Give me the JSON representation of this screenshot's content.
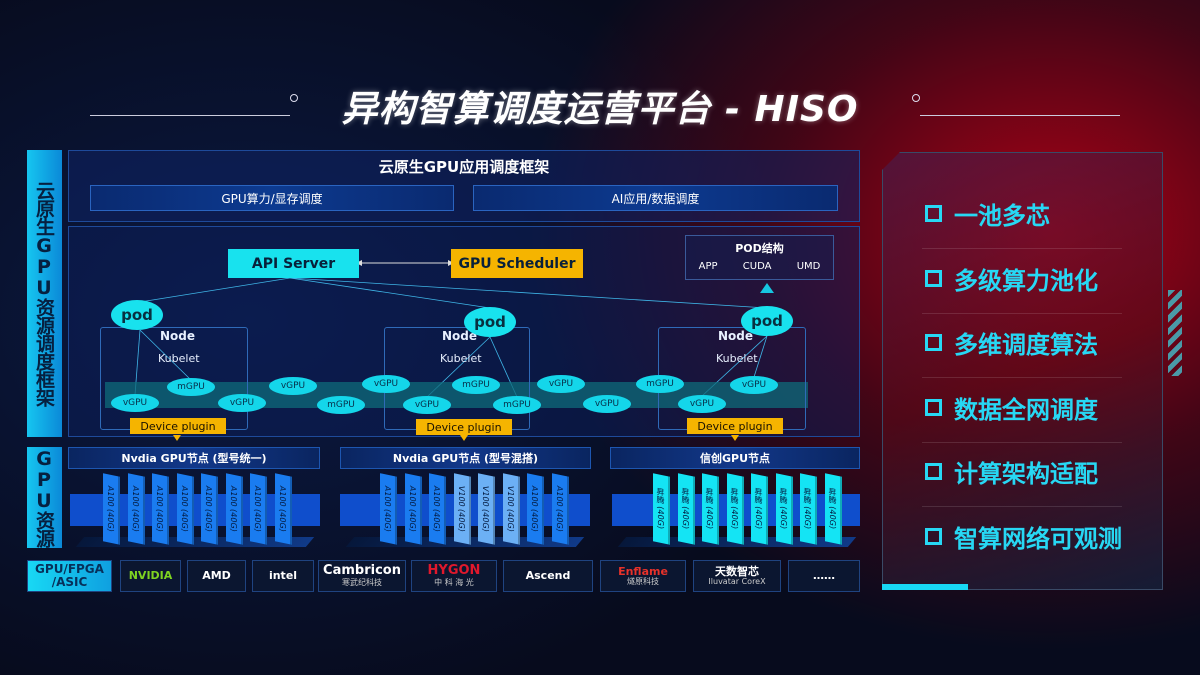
{
  "title": "异构智算调度运营平台 - HISO",
  "left_labels": {
    "framework": "云原生GPU资源调度框架",
    "resources": "GPU资源"
  },
  "framework": {
    "header": "云原生GPU应用调度框架",
    "bars": [
      "GPU算力/显存调度",
      "AI应用/数据调度"
    ],
    "api_server": "API Server",
    "gpu_scheduler": "GPU Scheduler",
    "pod_structure": {
      "title": "POD结构",
      "items": [
        "APP",
        "CUDA",
        "UMD"
      ]
    },
    "pod_label": "pod",
    "node_label": "Node",
    "kubelet_label": "Kubelet",
    "device_plugin": "Device plugin",
    "gpu_units": [
      "vGPU",
      "mGPU",
      "vGPU",
      "vGPU",
      "mGPU",
      "vGPU",
      "vGPU",
      "mGPU",
      "mGPU",
      "vGPU",
      "vGPU",
      "mGPU",
      "vGPU",
      "vGPU"
    ]
  },
  "gpu_nodes": [
    {
      "title": "Nvdia GPU节点 (型号统一)",
      "cards": [
        "A100 (40G)",
        "A100 (40G)",
        "A100 (40G)",
        "A100 (40G)",
        "A100 (40G)",
        "A100 (40G)",
        "A100 (40G)",
        "A100 (40G)"
      ]
    },
    {
      "title": "Nvdia GPU节点 (型号混搭)",
      "cards": [
        "A100 (40G)",
        "A100 (40G)",
        "A100 (40G)",
        "V100 (40G)",
        "V100 (40G)",
        "V100 (40G)",
        "A100 (40G)",
        "A100 (40G)"
      ]
    },
    {
      "title": "信创GPU节点",
      "cards": [
        "昇腾 (40G)",
        "昇腾 (40G)",
        "昇腾 (40G)",
        "昇腾 (40G)",
        "昇腾 (40G)",
        "昇腾 (40G)",
        "昇腾 (40G)",
        "昇腾 (40G)"
      ]
    }
  ],
  "vendors": {
    "label": "GPU/FPGA /ASIC",
    "items": [
      {
        "name": "NVIDIA",
        "sub": ""
      },
      {
        "name": "AMD",
        "sub": ""
      },
      {
        "name": "intel",
        "sub": ""
      },
      {
        "name": "Cambricon",
        "sub": "寒武纪科技"
      },
      {
        "name": "HYGON",
        "sub": "中 科 海 光"
      },
      {
        "name": "Ascend",
        "sub": ""
      },
      {
        "name": "Enflame",
        "sub": "燧原科技"
      },
      {
        "name": "天数智芯",
        "sub": "Iluvatar CoreX"
      },
      {
        "name": "……",
        "sub": ""
      }
    ]
  },
  "features": [
    "一池多芯",
    "多级算力池化",
    "多维调度算法",
    "数据全网调度",
    "计算架构适配",
    "智算网络可观测"
  ],
  "colors": {
    "accent_cyan": "#18e2ee",
    "accent_yellow": "#f5b400",
    "gpu_blue": "#1a7cf0",
    "background_red": "#c80014"
  }
}
